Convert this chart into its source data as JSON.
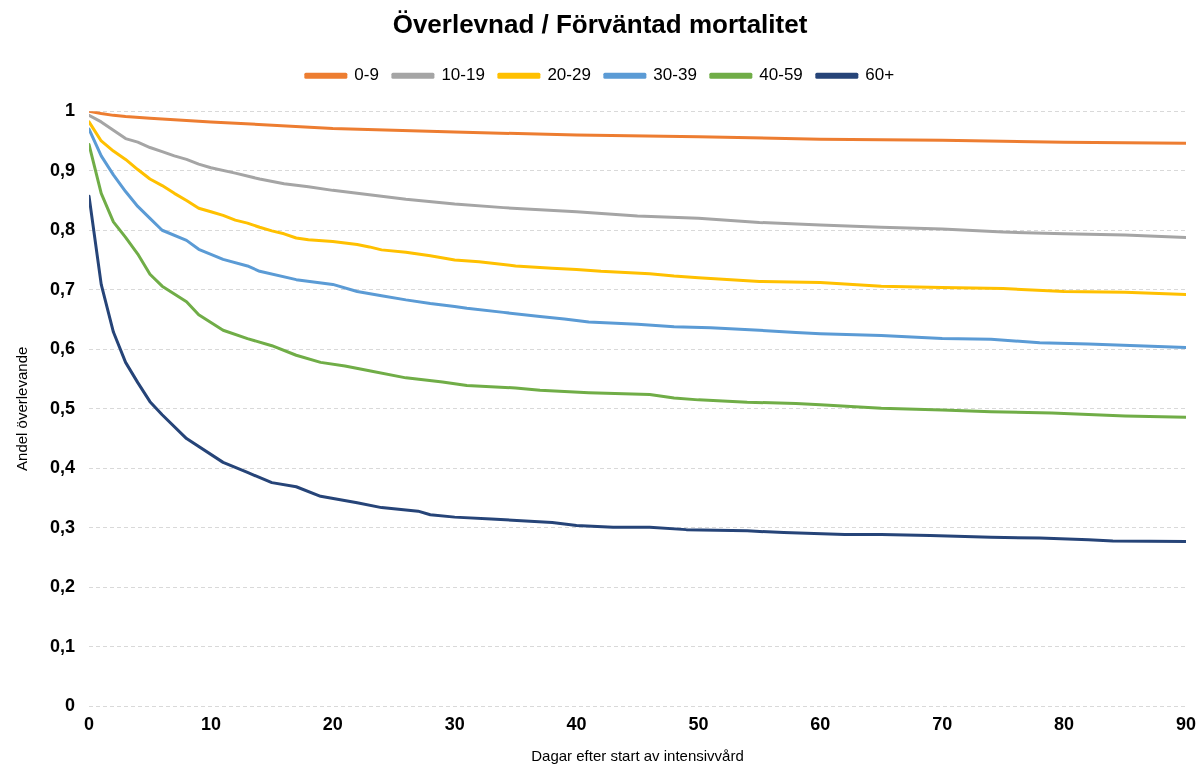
{
  "chart_data": {
    "type": "line",
    "title": "Överlevnad / Förväntad mortalitet",
    "xlabel": "Dagar efter start av intensivvård",
    "ylabel": "Andel överlevande",
    "xlim": [
      0,
      90
    ],
    "xticks": [
      0,
      10,
      20,
      30,
      40,
      50,
      60,
      70,
      80,
      90
    ],
    "ylim": [
      0,
      1
    ],
    "yticks": [
      0,
      {
        "value": 0.1,
        "label": "0,1"
      },
      {
        "value": 0.2,
        "label": "0,2"
      },
      {
        "value": 0.3,
        "label": "0,3"
      },
      {
        "value": 0.4,
        "label": "0,4"
      },
      {
        "value": 0.5,
        "label": "0,5"
      },
      {
        "value": 0.6,
        "label": "0,6"
      },
      {
        "value": 0.7,
        "label": "0,7"
      },
      {
        "value": 0.8,
        "label": "0,8"
      },
      {
        "value": 0.9,
        "label": "0,9"
      },
      1
    ],
    "grid": "y",
    "legend": "top",
    "marker": "none",
    "line_style": "solid",
    "series": [
      {
        "name": "0-9",
        "color": "#ed7d31",
        "x": [
          0,
          1,
          2,
          3,
          5,
          10,
          20,
          30,
          40,
          50,
          60,
          70,
          80,
          90
        ],
        "values": [
          1.0,
          0.996,
          0.993,
          0.991,
          0.988,
          0.982,
          0.971,
          0.965,
          0.96,
          0.957,
          0.953,
          0.951,
          0.948,
          0.946
        ]
      },
      {
        "name": "10-19",
        "color": "#a5a5a5",
        "x": [
          0,
          1,
          2,
          3,
          4,
          5,
          6,
          7,
          8,
          9,
          10,
          12,
          14,
          16,
          18,
          20,
          22,
          24,
          26,
          30,
          34,
          40,
          45,
          50,
          55,
          60,
          65,
          70,
          75,
          80,
          85,
          90
        ],
        "values": [
          0.993,
          0.982,
          0.968,
          0.954,
          0.948,
          0.939,
          0.932,
          0.925,
          0.919,
          0.911,
          0.905,
          0.896,
          0.886,
          0.878,
          0.873,
          0.867,
          0.862,
          0.857,
          0.852,
          0.844,
          0.838,
          0.831,
          0.824,
          0.82,
          0.813,
          0.809,
          0.805,
          0.802,
          0.797,
          0.794,
          0.792,
          0.788
        ]
      },
      {
        "name": "20-29",
        "color": "#ffc000",
        "x": [
          0,
          1,
          2,
          3,
          4,
          5,
          6,
          7,
          8,
          9,
          10,
          11,
          12,
          13,
          14,
          15,
          16,
          17,
          18,
          20,
          22,
          23,
          24,
          26,
          28,
          30,
          32,
          35,
          38,
          40,
          42,
          46,
          48,
          50,
          55,
          60,
          65,
          70,
          75,
          80,
          85,
          90
        ],
        "values": [
          0.982,
          0.95,
          0.933,
          0.919,
          0.902,
          0.886,
          0.875,
          0.862,
          0.85,
          0.837,
          0.831,
          0.825,
          0.817,
          0.812,
          0.805,
          0.799,
          0.794,
          0.787,
          0.784,
          0.781,
          0.776,
          0.772,
          0.767,
          0.763,
          0.757,
          0.75,
          0.747,
          0.74,
          0.736,
          0.734,
          0.731,
          0.727,
          0.723,
          0.72,
          0.714,
          0.712,
          0.706,
          0.704,
          0.702,
          0.697,
          0.696,
          0.692
        ]
      },
      {
        "name": "30-39",
        "color": "#5b9bd5",
        "x": [
          0,
          1,
          2,
          3,
          4,
          5,
          6,
          8,
          9,
          11,
          13,
          14,
          17,
          20,
          22,
          24,
          26,
          28,
          30,
          31,
          34,
          37,
          39,
          41,
          45,
          48,
          51,
          55,
          58,
          60,
          65,
          70,
          74,
          78,
          82,
          86,
          90
        ],
        "values": [
          0.97,
          0.925,
          0.893,
          0.865,
          0.84,
          0.82,
          0.8,
          0.783,
          0.768,
          0.751,
          0.74,
          0.731,
          0.717,
          0.709,
          0.697,
          0.69,
          0.683,
          0.677,
          0.672,
          0.669,
          0.662,
          0.655,
          0.651,
          0.646,
          0.642,
          0.638,
          0.636,
          0.632,
          0.628,
          0.626,
          0.623,
          0.618,
          0.617,
          0.611,
          0.609,
          0.606,
          0.603
        ]
      },
      {
        "name": "40-59",
        "color": "#70ad47",
        "x": [
          0,
          1,
          2,
          3,
          4,
          5,
          6,
          8,
          9,
          11,
          13,
          15,
          17,
          19,
          21,
          23,
          26,
          29,
          31,
          35,
          37,
          41,
          46,
          48,
          50,
          54,
          58,
          60,
          65,
          70,
          74,
          79,
          85,
          90
        ],
        "values": [
          0.944,
          0.862,
          0.814,
          0.788,
          0.76,
          0.726,
          0.706,
          0.68,
          0.658,
          0.632,
          0.618,
          0.606,
          0.59,
          0.578,
          0.572,
          0.564,
          0.552,
          0.545,
          0.539,
          0.535,
          0.531,
          0.527,
          0.524,
          0.518,
          0.515,
          0.511,
          0.509,
          0.507,
          0.501,
          0.498,
          0.495,
          0.493,
          0.488,
          0.486
        ]
      },
      {
        "name": "60+",
        "color": "#264478",
        "x": [
          0,
          1,
          2,
          3,
          4,
          5,
          6,
          8,
          11,
          13,
          15,
          17,
          19,
          22,
          24,
          27,
          28,
          30,
          33,
          38,
          40,
          43,
          46,
          49,
          54,
          57,
          62,
          65,
          69,
          74,
          78,
          82,
          84,
          90
        ],
        "values": [
          0.857,
          0.709,
          0.629,
          0.578,
          0.544,
          0.512,
          0.49,
          0.45,
          0.41,
          0.393,
          0.376,
          0.369,
          0.353,
          0.342,
          0.334,
          0.328,
          0.322,
          0.318,
          0.315,
          0.309,
          0.304,
          0.301,
          0.301,
          0.297,
          0.295,
          0.292,
          0.289,
          0.289,
          0.287,
          0.284,
          0.283,
          0.28,
          0.278,
          0.277
        ]
      }
    ]
  }
}
